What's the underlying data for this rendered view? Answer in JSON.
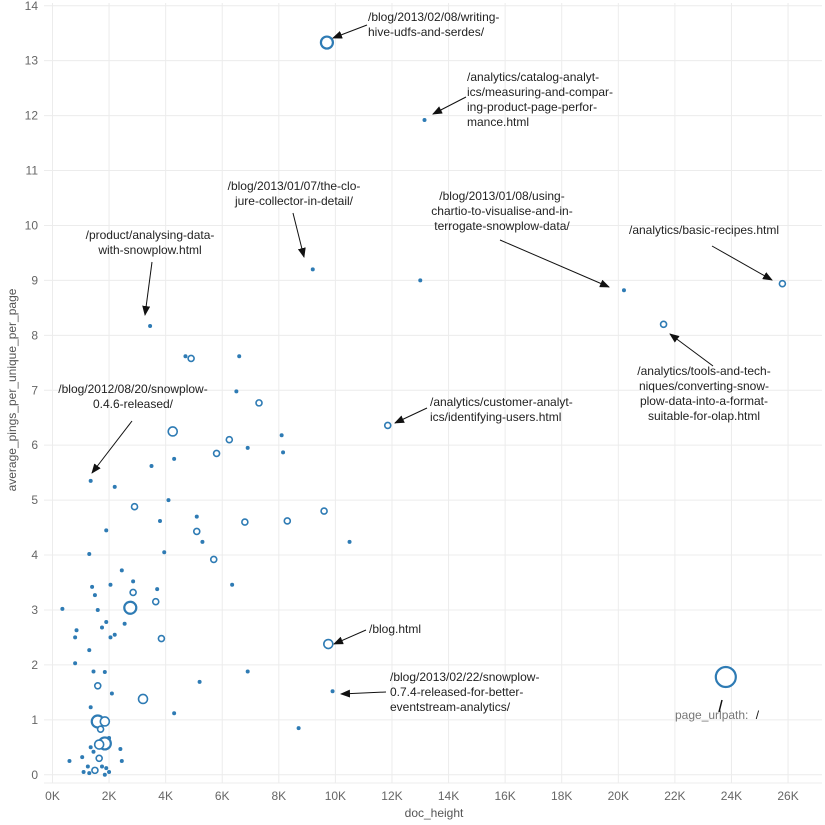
{
  "chart_data": {
    "type": "scatter",
    "xlabel": "doc_height",
    "ylabel": "average_pings_per_unique_per_page",
    "xlim": [
      -300,
      27200
    ],
    "ylim": [
      -0.15,
      14.05
    ],
    "x_ticks": [
      "0K",
      "2K",
      "4K",
      "6K",
      "8K",
      "10K",
      "12K",
      "14K",
      "16K",
      "18K",
      "20K",
      "22K",
      "24K",
      "26K"
    ],
    "y_ticks": [
      "0",
      "1",
      "2",
      "3",
      "4",
      "5",
      "6",
      "7",
      "8",
      "9",
      "10",
      "11",
      "12",
      "13",
      "14"
    ],
    "grid": true,
    "color": "#2e7bb4",
    "points": [
      {
        "x": 9700,
        "y": 13.33,
        "size": "large"
      },
      {
        "x": 13150,
        "y": 11.92,
        "size": "tiny"
      },
      {
        "x": 9200,
        "y": 9.2,
        "size": "tiny"
      },
      {
        "x": 13000,
        "y": 9.0,
        "size": "tiny"
      },
      {
        "x": 20200,
        "y": 8.82,
        "size": "tiny"
      },
      {
        "x": 25800,
        "y": 8.94,
        "size": "small"
      },
      {
        "x": 21600,
        "y": 8.2,
        "size": "small"
      },
      {
        "x": 3450,
        "y": 8.17,
        "size": "tiny"
      },
      {
        "x": 4700,
        "y": 7.62,
        "size": "tiny"
      },
      {
        "x": 4900,
        "y": 7.58,
        "size": "small"
      },
      {
        "x": 6600,
        "y": 7.62,
        "size": "tiny"
      },
      {
        "x": 6500,
        "y": 6.98,
        "size": "tiny"
      },
      {
        "x": 7300,
        "y": 6.77,
        "size": "small"
      },
      {
        "x": 4250,
        "y": 6.25,
        "size": "medium"
      },
      {
        "x": 11850,
        "y": 6.36,
        "size": "small"
      },
      {
        "x": 6250,
        "y": 6.1,
        "size": "small"
      },
      {
        "x": 6900,
        "y": 5.95,
        "size": "tiny"
      },
      {
        "x": 8100,
        "y": 6.18,
        "size": "tiny"
      },
      {
        "x": 8150,
        "y": 5.87,
        "size": "tiny"
      },
      {
        "x": 5800,
        "y": 5.85,
        "size": "small"
      },
      {
        "x": 4300,
        "y": 5.75,
        "size": "tiny"
      },
      {
        "x": 3500,
        "y": 5.62,
        "size": "tiny"
      },
      {
        "x": 1350,
        "y": 5.35,
        "size": "tiny"
      },
      {
        "x": 2200,
        "y": 5.24,
        "size": "tiny"
      },
      {
        "x": 4100,
        "y": 5.0,
        "size": "tiny"
      },
      {
        "x": 2900,
        "y": 4.88,
        "size": "small"
      },
      {
        "x": 9600,
        "y": 4.8,
        "size": "small"
      },
      {
        "x": 5100,
        "y": 4.7,
        "size": "tiny"
      },
      {
        "x": 3800,
        "y": 4.62,
        "size": "tiny"
      },
      {
        "x": 6800,
        "y": 4.6,
        "size": "small"
      },
      {
        "x": 8300,
        "y": 4.62,
        "size": "small"
      },
      {
        "x": 5100,
        "y": 4.43,
        "size": "small"
      },
      {
        "x": 1900,
        "y": 4.45,
        "size": "tiny"
      },
      {
        "x": 10500,
        "y": 4.24,
        "size": "tiny"
      },
      {
        "x": 5300,
        "y": 4.24,
        "size": "tiny"
      },
      {
        "x": 3950,
        "y": 4.05,
        "size": "tiny"
      },
      {
        "x": 1300,
        "y": 4.02,
        "size": "tiny"
      },
      {
        "x": 5700,
        "y": 3.92,
        "size": "small"
      },
      {
        "x": 2450,
        "y": 3.72,
        "size": "tiny"
      },
      {
        "x": 2850,
        "y": 3.52,
        "size": "tiny"
      },
      {
        "x": 6350,
        "y": 3.46,
        "size": "tiny"
      },
      {
        "x": 2050,
        "y": 3.46,
        "size": "tiny"
      },
      {
        "x": 1400,
        "y": 3.42,
        "size": "tiny"
      },
      {
        "x": 3700,
        "y": 3.38,
        "size": "tiny"
      },
      {
        "x": 2850,
        "y": 3.32,
        "size": "small"
      },
      {
        "x": 1500,
        "y": 3.27,
        "size": "tiny"
      },
      {
        "x": 3650,
        "y": 3.15,
        "size": "small"
      },
      {
        "x": 2750,
        "y": 3.04,
        "size": "large"
      },
      {
        "x": 350,
        "y": 3.02,
        "size": "tiny"
      },
      {
        "x": 1600,
        "y": 3.0,
        "size": "tiny"
      },
      {
        "x": 1900,
        "y": 2.78,
        "size": "tiny"
      },
      {
        "x": 2550,
        "y": 2.75,
        "size": "tiny"
      },
      {
        "x": 1750,
        "y": 2.68,
        "size": "tiny"
      },
      {
        "x": 850,
        "y": 2.63,
        "size": "tiny"
      },
      {
        "x": 2200,
        "y": 2.55,
        "size": "tiny"
      },
      {
        "x": 2050,
        "y": 2.5,
        "size": "tiny"
      },
      {
        "x": 800,
        "y": 2.5,
        "size": "tiny"
      },
      {
        "x": 3850,
        "y": 2.48,
        "size": "small"
      },
      {
        "x": 9750,
        "y": 2.38,
        "size": "medium"
      },
      {
        "x": 1300,
        "y": 2.27,
        "size": "tiny"
      },
      {
        "x": 800,
        "y": 2.03,
        "size": "tiny"
      },
      {
        "x": 6900,
        "y": 1.88,
        "size": "tiny"
      },
      {
        "x": 1450,
        "y": 1.88,
        "size": "tiny"
      },
      {
        "x": 1850,
        "y": 1.87,
        "size": "tiny"
      },
      {
        "x": 23800,
        "y": 1.78,
        "size": "xlarge"
      },
      {
        "x": 5200,
        "y": 1.69,
        "size": "tiny"
      },
      {
        "x": 1600,
        "y": 1.62,
        "size": "small"
      },
      {
        "x": 9900,
        "y": 1.52,
        "size": "tiny"
      },
      {
        "x": 2100,
        "y": 1.48,
        "size": "tiny"
      },
      {
        "x": 3200,
        "y": 1.38,
        "size": "medium"
      },
      {
        "x": 1350,
        "y": 1.23,
        "size": "tiny"
      },
      {
        "x": 4300,
        "y": 1.12,
        "size": "tiny"
      },
      {
        "x": 1600,
        "y": 0.97,
        "size": "large"
      },
      {
        "x": 1850,
        "y": 0.97,
        "size": "medium"
      },
      {
        "x": 1700,
        "y": 0.83,
        "size": "small"
      },
      {
        "x": 8700,
        "y": 0.85,
        "size": "tiny"
      },
      {
        "x": 1850,
        "y": 0.57,
        "size": "large"
      },
      {
        "x": 1650,
        "y": 0.55,
        "size": "medium"
      },
      {
        "x": 2000,
        "y": 0.67,
        "size": "tiny"
      },
      {
        "x": 1350,
        "y": 0.5,
        "size": "tiny"
      },
      {
        "x": 2400,
        "y": 0.47,
        "size": "tiny"
      },
      {
        "x": 1450,
        "y": 0.42,
        "size": "tiny"
      },
      {
        "x": 1050,
        "y": 0.32,
        "size": "tiny"
      },
      {
        "x": 600,
        "y": 0.25,
        "size": "tiny"
      },
      {
        "x": 1650,
        "y": 0.3,
        "size": "small"
      },
      {
        "x": 2450,
        "y": 0.25,
        "size": "tiny"
      },
      {
        "x": 1250,
        "y": 0.15,
        "size": "tiny"
      },
      {
        "x": 1750,
        "y": 0.15,
        "size": "tiny"
      },
      {
        "x": 1500,
        "y": 0.08,
        "size": "small"
      },
      {
        "x": 1100,
        "y": 0.05,
        "size": "tiny"
      },
      {
        "x": 1300,
        "y": 0.03,
        "size": "tiny"
      },
      {
        "x": 1850,
        "y": 0.0,
        "size": "tiny"
      },
      {
        "x": 1900,
        "y": 0.12,
        "size": "tiny"
      },
      {
        "x": 2000,
        "y": 0.05,
        "size": "tiny"
      }
    ],
    "annotations": [
      {
        "lines": [
          "/blog/2013/02/08/writing-",
          "hive-udfs-and-serdes/"
        ]
      },
      {
        "lines": [
          "/analytics/catalog-analyt-",
          "ics/measuring-and-compar-",
          "ing-product-page-perfor-",
          "mance.html"
        ]
      },
      {
        "lines": [
          "/blog/2013/01/07/the-clo-",
          "jure-collector-in-detail/"
        ]
      },
      {
        "lines": [
          "/blog/2013/01/08/using-",
          "chartio-to-visualise-and-in-",
          "terrogate-snowplow-data/"
        ]
      },
      {
        "lines": [
          "/analytics/basic-recipes.html"
        ]
      },
      {
        "lines": [
          "/product/analysing-data-",
          "with-snowplow.html"
        ]
      },
      {
        "lines": [
          "/analytics/tools-and-tech-",
          "niques/converting-snow-",
          "plow-data-into-a-format-",
          "suitable-for-olap.html"
        ]
      },
      {
        "lines": [
          "/blog/2012/08/20/snowplow-",
          "0.4.6-released/"
        ]
      },
      {
        "lines": [
          "/analytics/customer-analyt-",
          "ics/identifying-users.html"
        ]
      },
      {
        "lines": [
          "/blog.html"
        ]
      },
      {
        "lines": [
          "/blog/2013/02/22/snowplow-",
          "0.7.4-released-for-better-",
          "eventstream-analytics/"
        ]
      }
    ],
    "tooltip_label": {
      "field": "page_urlpath:",
      "value": "/"
    }
  }
}
